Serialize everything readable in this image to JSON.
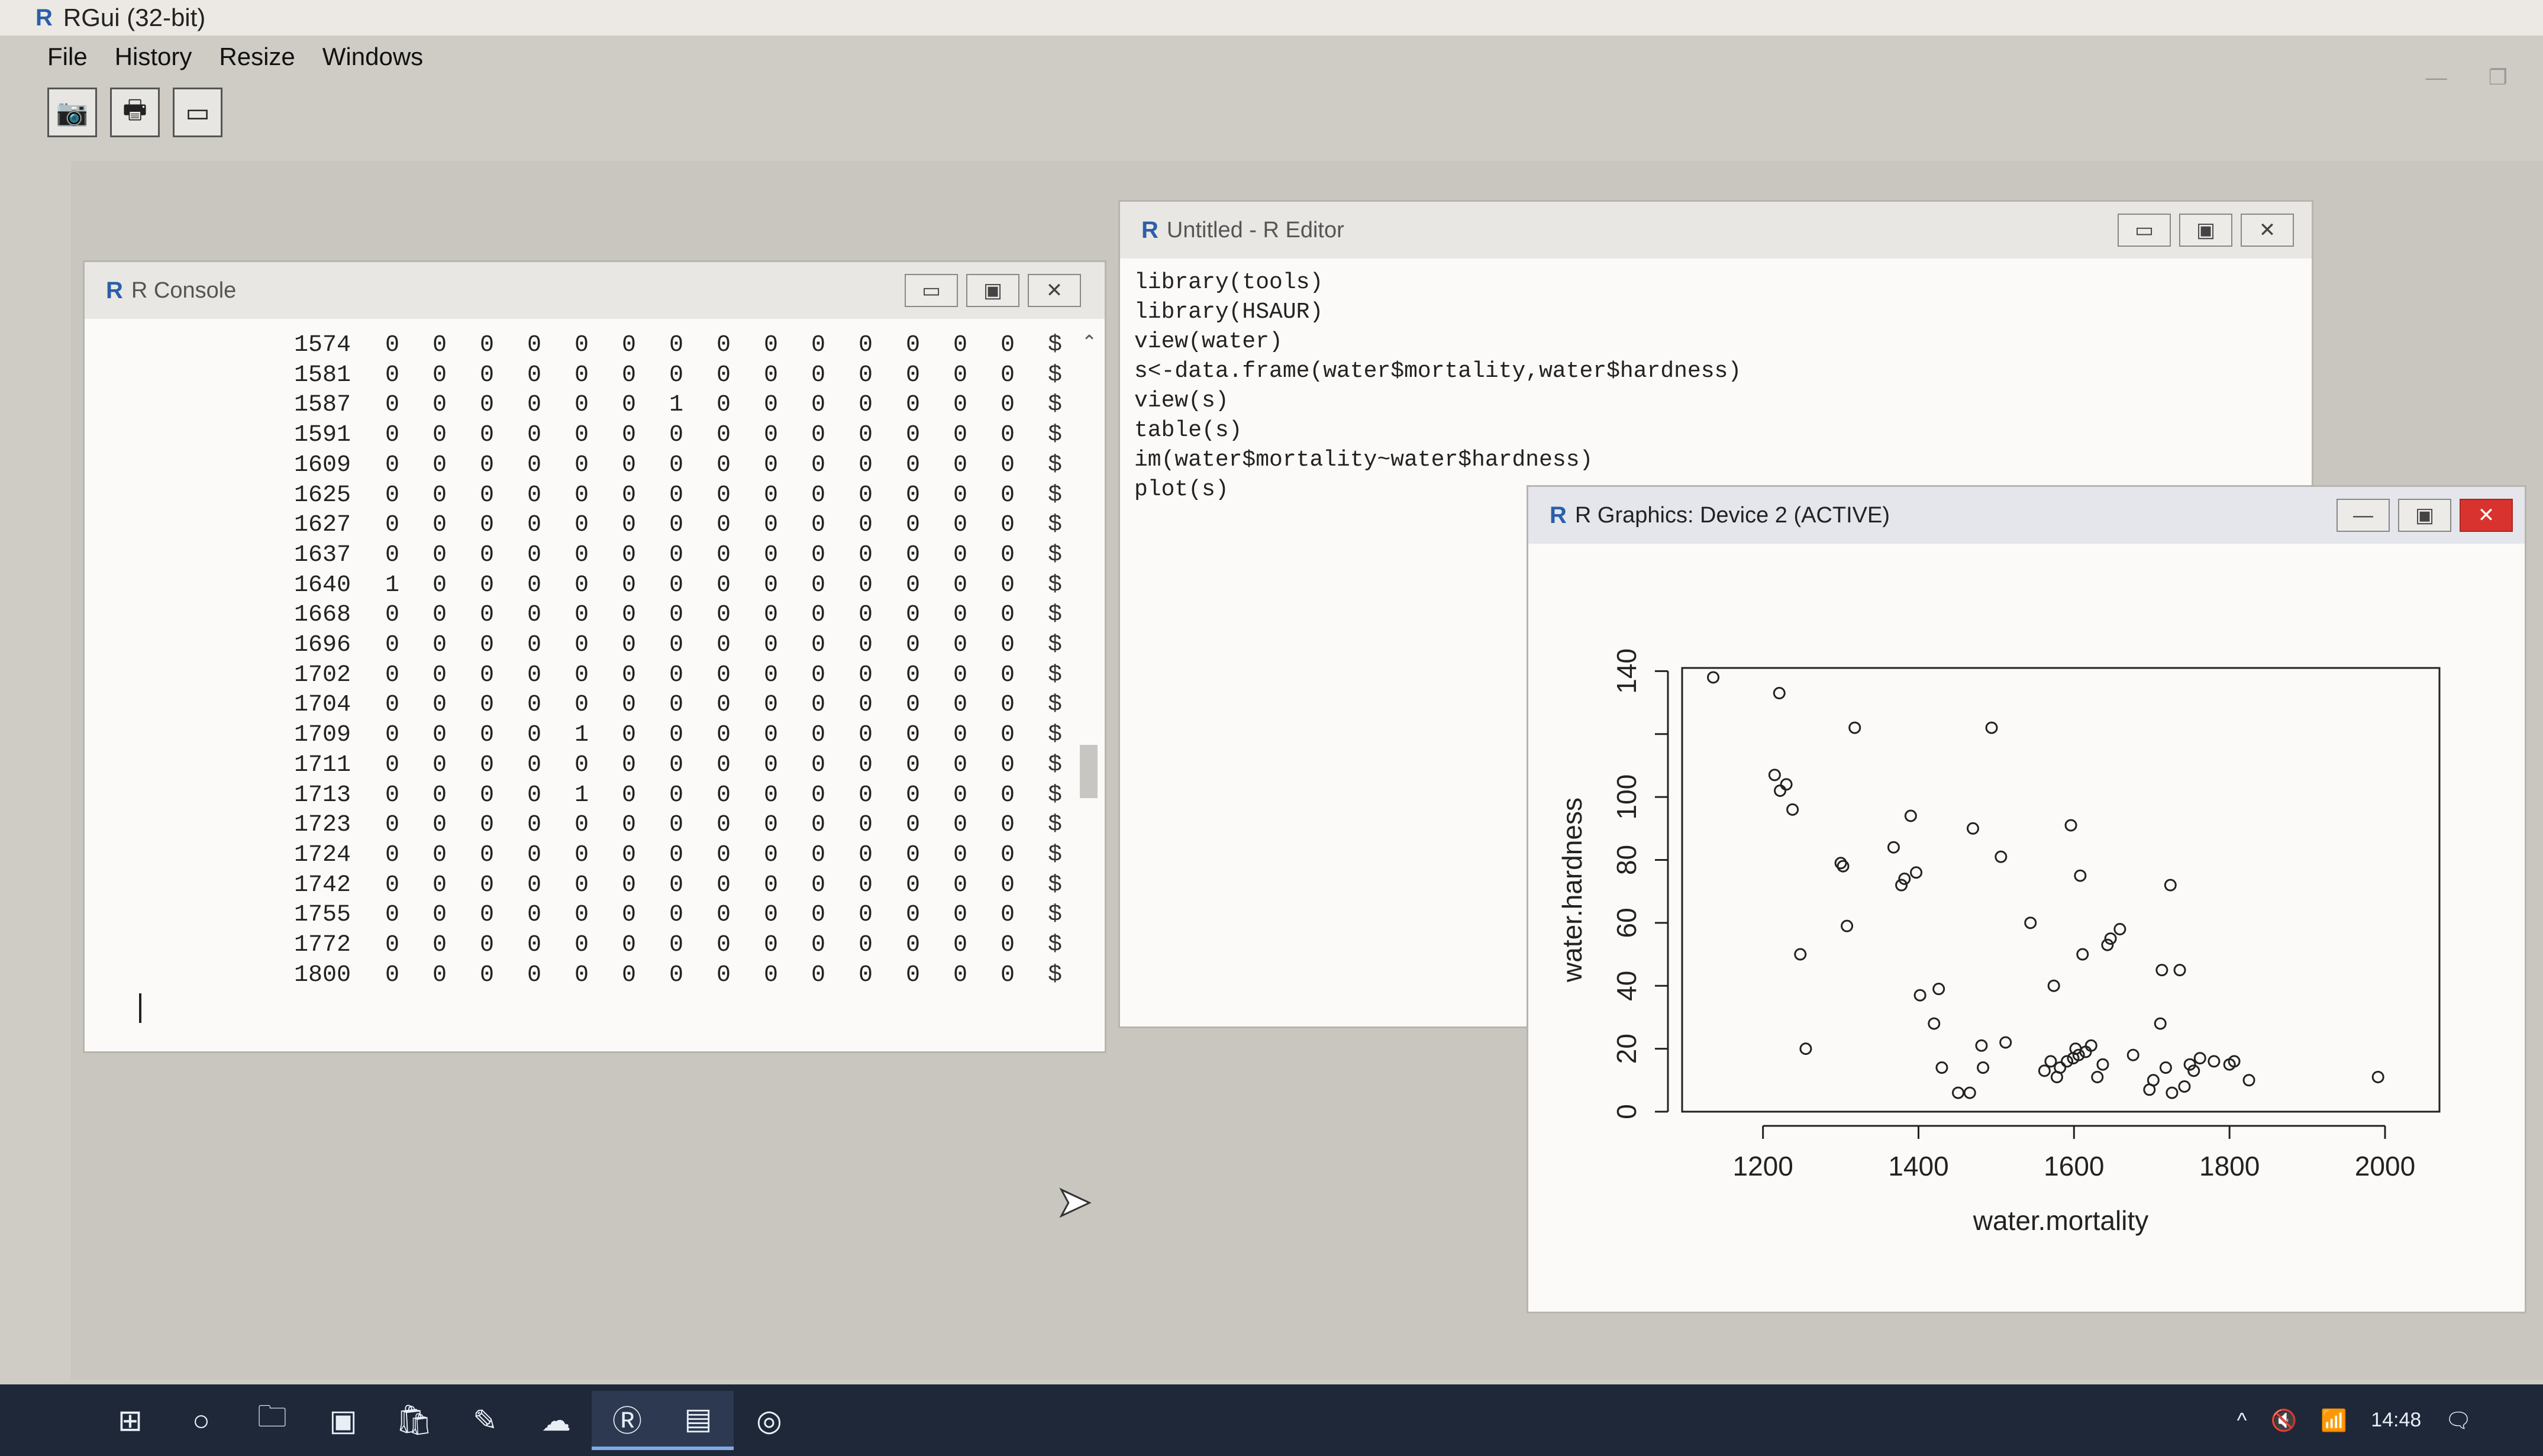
{
  "app": {
    "title": "RGui (32-bit)",
    "logo": "R",
    "menu": [
      "File",
      "History",
      "Resize",
      "Windows"
    ],
    "toolbar": [
      {
        "name": "copy-to-clipboard",
        "icon": "camera-icon",
        "glyph": "📷"
      },
      {
        "name": "print",
        "icon": "printer-icon",
        "glyph": "🖶"
      },
      {
        "name": "new-window",
        "icon": "window-icon",
        "glyph": "▭"
      }
    ],
    "frame_controls": {
      "minimize": "—",
      "restore": "❐"
    }
  },
  "console": {
    "title": "R Console",
    "controls": {
      "minimize": "▭",
      "maximize": "▣",
      "close": "✕"
    },
    "rows": [
      {
        "id": "1574",
        "values": [
          "0",
          "0",
          "0",
          "0",
          "0",
          "0",
          "0",
          "0",
          "0",
          "0",
          "0",
          "0",
          "0",
          "0"
        ],
        "dollar": "$"
      },
      {
        "id": "1581",
        "values": [
          "0",
          "0",
          "0",
          "0",
          "0",
          "0",
          "0",
          "0",
          "0",
          "0",
          "0",
          "0",
          "0",
          "0"
        ],
        "dollar": "$"
      },
      {
        "id": "1587",
        "values": [
          "0",
          "0",
          "0",
          "0",
          "0",
          "0",
          "1",
          "0",
          "0",
          "0",
          "0",
          "0",
          "0",
          "0"
        ],
        "dollar": "$"
      },
      {
        "id": "1591",
        "values": [
          "0",
          "0",
          "0",
          "0",
          "0",
          "0",
          "0",
          "0",
          "0",
          "0",
          "0",
          "0",
          "0",
          "0"
        ],
        "dollar": "$"
      },
      {
        "id": "1609",
        "values": [
          "0",
          "0",
          "0",
          "0",
          "0",
          "0",
          "0",
          "0",
          "0",
          "0",
          "0",
          "0",
          "0",
          "0"
        ],
        "dollar": "$"
      },
      {
        "id": "1625",
        "values": [
          "0",
          "0",
          "0",
          "0",
          "0",
          "0",
          "0",
          "0",
          "0",
          "0",
          "0",
          "0",
          "0",
          "0"
        ],
        "dollar": "$"
      },
      {
        "id": "1627",
        "values": [
          "0",
          "0",
          "0",
          "0",
          "0",
          "0",
          "0",
          "0",
          "0",
          "0",
          "0",
          "0",
          "0",
          "0"
        ],
        "dollar": "$"
      },
      {
        "id": "1637",
        "values": [
          "0",
          "0",
          "0",
          "0",
          "0",
          "0",
          "0",
          "0",
          "0",
          "0",
          "0",
          "0",
          "0",
          "0"
        ],
        "dollar": "$"
      },
      {
        "id": "1640",
        "values": [
          "1",
          "0",
          "0",
          "0",
          "0",
          "0",
          "0",
          "0",
          "0",
          "0",
          "0",
          "0",
          "0",
          "0"
        ],
        "dollar": "$"
      },
      {
        "id": "1668",
        "values": [
          "0",
          "0",
          "0",
          "0",
          "0",
          "0",
          "0",
          "0",
          "0",
          "0",
          "0",
          "0",
          "0",
          "0"
        ],
        "dollar": "$"
      },
      {
        "id": "1696",
        "values": [
          "0",
          "0",
          "0",
          "0",
          "0",
          "0",
          "0",
          "0",
          "0",
          "0",
          "0",
          "0",
          "0",
          "0"
        ],
        "dollar": "$"
      },
      {
        "id": "1702",
        "values": [
          "0",
          "0",
          "0",
          "0",
          "0",
          "0",
          "0",
          "0",
          "0",
          "0",
          "0",
          "0",
          "0",
          "0"
        ],
        "dollar": "$"
      },
      {
        "id": "1704",
        "values": [
          "0",
          "0",
          "0",
          "0",
          "0",
          "0",
          "0",
          "0",
          "0",
          "0",
          "0",
          "0",
          "0",
          "0"
        ],
        "dollar": "$"
      },
      {
        "id": "1709",
        "values": [
          "0",
          "0",
          "0",
          "0",
          "1",
          "0",
          "0",
          "0",
          "0",
          "0",
          "0",
          "0",
          "0",
          "0"
        ],
        "dollar": "$"
      },
      {
        "id": "1711",
        "values": [
          "0",
          "0",
          "0",
          "0",
          "0",
          "0",
          "0",
          "0",
          "0",
          "0",
          "0",
          "0",
          "0",
          "0"
        ],
        "dollar": "$"
      },
      {
        "id": "1713",
        "values": [
          "0",
          "0",
          "0",
          "0",
          "1",
          "0",
          "0",
          "0",
          "0",
          "0",
          "0",
          "0",
          "0",
          "0"
        ],
        "dollar": "$"
      },
      {
        "id": "1723",
        "values": [
          "0",
          "0",
          "0",
          "0",
          "0",
          "0",
          "0",
          "0",
          "0",
          "0",
          "0",
          "0",
          "0",
          "0"
        ],
        "dollar": "$"
      },
      {
        "id": "1724",
        "values": [
          "0",
          "0",
          "0",
          "0",
          "0",
          "0",
          "0",
          "0",
          "0",
          "0",
          "0",
          "0",
          "0",
          "0"
        ],
        "dollar": "$"
      },
      {
        "id": "1742",
        "values": [
          "0",
          "0",
          "0",
          "0",
          "0",
          "0",
          "0",
          "0",
          "0",
          "0",
          "0",
          "0",
          "0",
          "0"
        ],
        "dollar": "$"
      },
      {
        "id": "1755",
        "values": [
          "0",
          "0",
          "0",
          "0",
          "0",
          "0",
          "0",
          "0",
          "0",
          "0",
          "0",
          "0",
          "0",
          "0"
        ],
        "dollar": "$"
      },
      {
        "id": "1772",
        "values": [
          "0",
          "0",
          "0",
          "0",
          "0",
          "0",
          "0",
          "0",
          "0",
          "0",
          "0",
          "0",
          "0",
          "0"
        ],
        "dollar": "$"
      },
      {
        "id": "1800",
        "values": [
          "0",
          "0",
          "0",
          "0",
          "0",
          "0",
          "0",
          "0",
          "0",
          "0",
          "0",
          "0",
          "0",
          "0"
        ],
        "dollar": "$"
      }
    ]
  },
  "editor": {
    "title": "Untitled - R Editor",
    "controls": {
      "minimize": "▭",
      "maximize": "▣",
      "close": "✕"
    },
    "lines": [
      "library(tools)",
      "library(HSAUR)",
      "view(water)",
      "s<-data.frame(water$mortality,water$hardness)",
      "view(s)",
      "table(s)",
      "im(water$mortality~water$hardness)",
      "plot(s)"
    ]
  },
  "graphics": {
    "title": "R Graphics: Device 2 (ACTIVE)",
    "controls": {
      "minimize": "—",
      "maximize": "▣",
      "close": "✕"
    }
  },
  "chart_data": {
    "type": "scatter",
    "xlabel": "water.mortality",
    "ylabel": "water.hardness",
    "xlim": [
      1096,
      2070
    ],
    "ylim": [
      0,
      141
    ],
    "xticks": [
      1200,
      1400,
      1600,
      1800,
      2000
    ],
    "yticks": [
      0,
      20,
      40,
      60,
      80,
      100,
      120,
      140
    ],
    "yticks_labeled": [
      0,
      20,
      40,
      60,
      80,
      100,
      140
    ],
    "grid": false,
    "points": [
      {
        "x": 1136,
        "y": 138
      },
      {
        "x": 1215,
        "y": 107
      },
      {
        "x": 1221,
        "y": 133
      },
      {
        "x": 1222,
        "y": 102
      },
      {
        "x": 1230,
        "y": 104
      },
      {
        "x": 1238,
        "y": 96
      },
      {
        "x": 1248,
        "y": 50
      },
      {
        "x": 1255,
        "y": 20
      },
      {
        "x": 1300,
        "y": 79
      },
      {
        "x": 1303,
        "y": 78
      },
      {
        "x": 1308,
        "y": 59
      },
      {
        "x": 1318,
        "y": 122
      },
      {
        "x": 1368,
        "y": 84
      },
      {
        "x": 1378,
        "y": 72
      },
      {
        "x": 1382,
        "y": 74
      },
      {
        "x": 1390,
        "y": 94
      },
      {
        "x": 1397,
        "y": 76
      },
      {
        "x": 1402,
        "y": 37
      },
      {
        "x": 1420,
        "y": 28
      },
      {
        "x": 1426,
        "y": 39
      },
      {
        "x": 1430,
        "y": 14
      },
      {
        "x": 1451,
        "y": 6
      },
      {
        "x": 1466,
        "y": 6
      },
      {
        "x": 1470,
        "y": 90
      },
      {
        "x": 1481,
        "y": 21
      },
      {
        "x": 1483,
        "y": 14
      },
      {
        "x": 1494,
        "y": 122
      },
      {
        "x": 1506,
        "y": 81
      },
      {
        "x": 1512,
        "y": 22
      },
      {
        "x": 1544,
        "y": 60
      },
      {
        "x": 1562,
        "y": 13
      },
      {
        "x": 1570,
        "y": 16
      },
      {
        "x": 1574,
        "y": 40
      },
      {
        "x": 1578,
        "y": 11
      },
      {
        "x": 1582,
        "y": 14
      },
      {
        "x": 1591,
        "y": 16
      },
      {
        "x": 1596,
        "y": 91
      },
      {
        "x": 1599,
        "y": 17
      },
      {
        "x": 1602,
        "y": 20
      },
      {
        "x": 1606,
        "y": 18
      },
      {
        "x": 1608,
        "y": 75
      },
      {
        "x": 1611,
        "y": 50
      },
      {
        "x": 1615,
        "y": 19
      },
      {
        "x": 1622,
        "y": 21
      },
      {
        "x": 1630,
        "y": 11
      },
      {
        "x": 1637,
        "y": 15
      },
      {
        "x": 1643,
        "y": 53
      },
      {
        "x": 1647,
        "y": 55
      },
      {
        "x": 1659,
        "y": 58
      },
      {
        "x": 1676,
        "y": 18
      },
      {
        "x": 1697,
        "y": 7
      },
      {
        "x": 1702,
        "y": 10
      },
      {
        "x": 1711,
        "y": 28
      },
      {
        "x": 1713,
        "y": 45
      },
      {
        "x": 1718,
        "y": 14
      },
      {
        "x": 1724,
        "y": 72
      },
      {
        "x": 1726,
        "y": 6
      },
      {
        "x": 1736,
        "y": 45
      },
      {
        "x": 1742,
        "y": 8
      },
      {
        "x": 1749,
        "y": 15
      },
      {
        "x": 1754,
        "y": 13
      },
      {
        "x": 1762,
        "y": 17
      },
      {
        "x": 1780,
        "y": 16
      },
      {
        "x": 1800,
        "y": 15
      },
      {
        "x": 1806,
        "y": 16
      },
      {
        "x": 1825,
        "y": 10
      },
      {
        "x": 1991,
        "y": 11
      }
    ]
  },
  "taskbar": {
    "items": [
      {
        "name": "start",
        "glyph": "⊞"
      },
      {
        "name": "search",
        "glyph": "○"
      },
      {
        "name": "file-explorer",
        "glyph": "🗀"
      },
      {
        "name": "app-2",
        "glyph": "▣"
      },
      {
        "name": "store",
        "glyph": "🛍"
      },
      {
        "name": "app-4",
        "glyph": "✎"
      },
      {
        "name": "app-5",
        "glyph": "☁"
      },
      {
        "name": "r-gui",
        "glyph": "Ⓡ",
        "active": true
      },
      {
        "name": "notepad",
        "glyph": "▤",
        "active": true
      },
      {
        "name": "chrome",
        "glyph": "◎"
      }
    ],
    "tray": {
      "chevron": "^",
      "volume": "🔇",
      "wifi": "📶",
      "time": "14:48",
      "notifications": "🗨"
    }
  },
  "colors": {
    "accent": "#2b5fa8",
    "taskbar": "#1e2838",
    "close_red": "#d8332e"
  }
}
